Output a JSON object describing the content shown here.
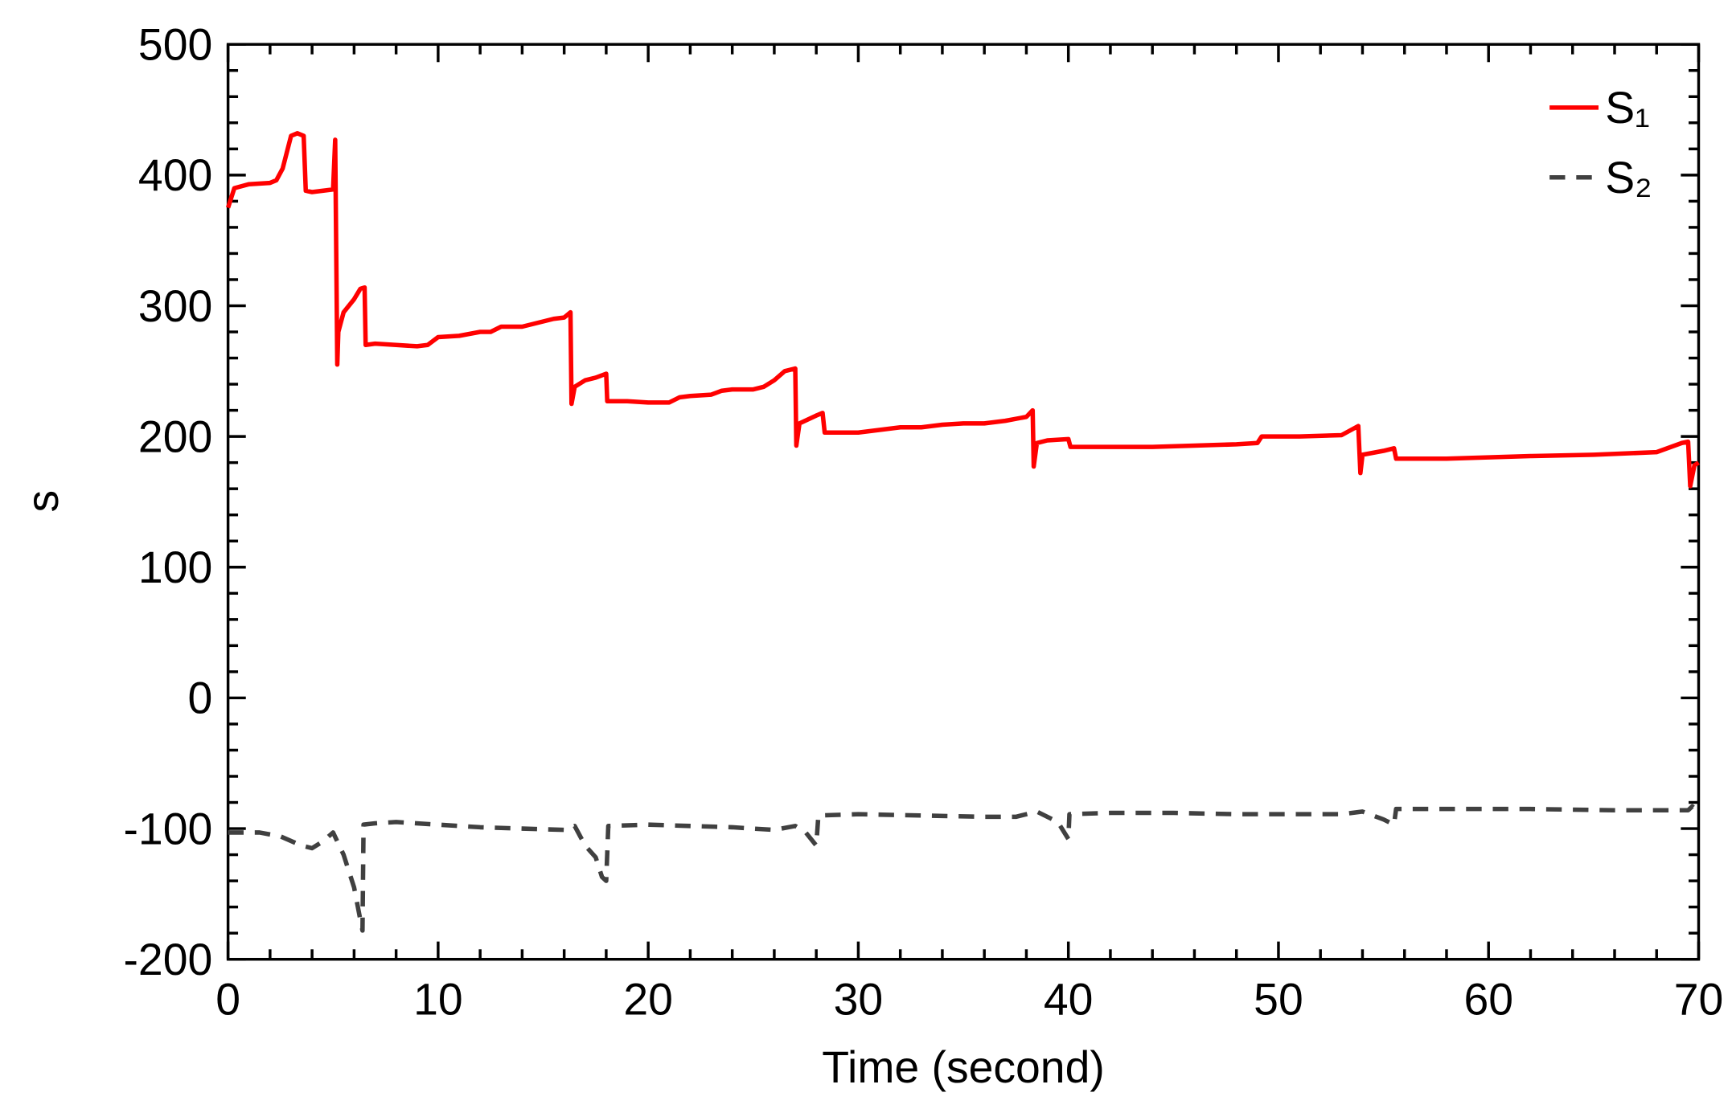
{
  "chart_data": {
    "type": "line",
    "x_label": "Time (second)",
    "y_label": "s",
    "xlim": [
      0,
      70
    ],
    "xticks": [
      0,
      10,
      20,
      30,
      40,
      50,
      60,
      70
    ],
    "ylim": [
      -200,
      500
    ],
    "yticks": [
      -200,
      -100,
      0,
      100,
      200,
      300,
      400,
      500
    ],
    "legend": "upper right",
    "series": [
      {
        "name": "S₁",
        "color": "#ff0000",
        "style": "solid",
        "x": [
          0,
          0.3,
          1,
          2,
          2.3,
          2.6,
          3,
          3.3,
          3.6,
          3.7,
          4,
          5,
          5.1,
          5.2,
          5.25,
          5.5,
          6,
          6.3,
          6.5,
          6.55,
          7,
          8,
          9,
          9.5,
          10,
          11,
          12,
          12.5,
          13,
          14,
          15,
          15.5,
          16,
          16.3,
          16.35,
          16.5,
          17,
          17.5,
          18,
          18.05,
          19,
          20,
          21,
          21.5,
          22,
          23,
          23.5,
          24,
          25,
          25.5,
          26,
          26.5,
          27,
          27.05,
          27.2,
          28,
          28.3,
          28.4,
          29,
          30,
          31,
          32,
          33,
          34,
          35,
          36,
          37,
          38,
          38.3,
          38.35,
          38.5,
          39,
          40,
          40.1,
          42,
          44,
          46,
          48,
          49,
          49.2,
          51,
          53,
          53.8,
          53.9,
          54,
          55,
          55.5,
          55.6,
          58,
          60,
          62,
          65,
          68,
          69.2,
          69.5,
          69.6,
          69.8,
          70
        ],
        "values": [
          375,
          390,
          393,
          394,
          396,
          405,
          430,
          432,
          430,
          388,
          387,
          389,
          427,
          255,
          280,
          295,
          305,
          313,
          314,
          270,
          271,
          270,
          269,
          270,
          276,
          277,
          280,
          280,
          284,
          284,
          288,
          290,
          291,
          295,
          225,
          238,
          243,
          245,
          248,
          227,
          227,
          226,
          226,
          230,
          231,
          232,
          235,
          236,
          236,
          238,
          243,
          250,
          252,
          193,
          210,
          216,
          218,
          203,
          203,
          203,
          205,
          207,
          207,
          209,
          210,
          210,
          212,
          215,
          220,
          177,
          195,
          197,
          198,
          192,
          192,
          192,
          193,
          194,
          195,
          200,
          200,
          201,
          208,
          172,
          186,
          189,
          191,
          183,
          183,
          184,
          185,
          186,
          188,
          195,
          196,
          162,
          178,
          180
        ]
      },
      {
        "name": "S₂",
        "color": "#404040",
        "style": "dashed",
        "x": [
          0,
          1.5,
          2.5,
          3.5,
          4,
          4.5,
          5,
          5.5,
          6,
          6.3,
          6.4,
          6.45,
          7,
          8,
          10,
          12,
          14,
          16,
          16.5,
          17,
          17.5,
          17.8,
          18,
          18.1,
          20,
          22,
          24,
          26,
          27,
          27.5,
          28,
          28.1,
          30,
          33,
          36,
          37.5,
          38.5,
          39.5,
          40,
          40.05,
          42,
          45,
          48,
          50,
          52,
          53,
          54,
          55,
          55.5,
          55.6,
          58,
          62,
          66,
          69.5,
          69.7,
          70
        ],
        "values": [
          -103,
          -103,
          -106,
          -113,
          -115,
          -110,
          -103,
          -120,
          -145,
          -170,
          -178,
          -97,
          -96,
          -95,
          -97,
          -99,
          -100,
          -101,
          -98,
          -113,
          -122,
          -137,
          -140,
          -98,
          -97,
          -98,
          -99,
          -101,
          -98,
          -103,
          -113,
          -90,
          -89,
          -90,
          -91,
          -91,
          -87,
          -95,
          -108,
          -89,
          -88,
          -88,
          -89,
          -89,
          -89,
          -89,
          -87,
          -93,
          -97,
          -85,
          -85,
          -85,
          -86,
          -86,
          -83,
          -88
        ]
      }
    ]
  }
}
